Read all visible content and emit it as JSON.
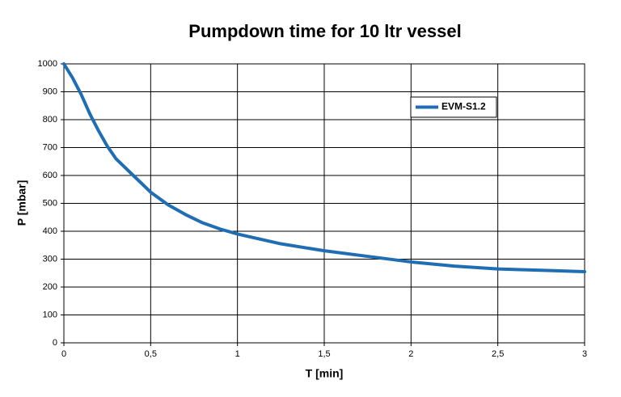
{
  "chart_data": {
    "type": "line",
    "title": "Pumpdown time for 10 ltr vessel",
    "x_label": "T [min]",
    "y_label": "P [mbar]",
    "x": [
      0,
      0.05,
      0.1,
      0.15,
      0.2,
      0.25,
      0.3,
      0.4,
      0.5,
      0.6,
      0.7,
      0.8,
      0.9,
      1,
      1.25,
      1.5,
      1.75,
      2,
      2.25,
      2.5,
      2.75,
      3
    ],
    "series": [
      {
        "name": "EVM-S1.2",
        "color": "#1f6db3",
        "values": [
          1000,
          950,
          890,
          820,
          760,
          705,
          660,
          600,
          540,
          495,
          460,
          430,
          408,
          390,
          355,
          330,
          310,
          290,
          275,
          265,
          260,
          255
        ]
      }
    ],
    "xlim": [
      0,
      3
    ],
    "ylim": [
      0,
      1000
    ],
    "xticks": [
      0,
      {
        "value": 0.5,
        "label": "0,5"
      },
      1,
      {
        "value": 1.5,
        "label": "1,5"
      },
      2,
      {
        "value": 2.5,
        "label": "2,5"
      },
      3
    ],
    "yticks": [
      0,
      100,
      200,
      300,
      400,
      500,
      600,
      700,
      800,
      900,
      1000
    ],
    "grid": true,
    "legend": "top-right"
  }
}
